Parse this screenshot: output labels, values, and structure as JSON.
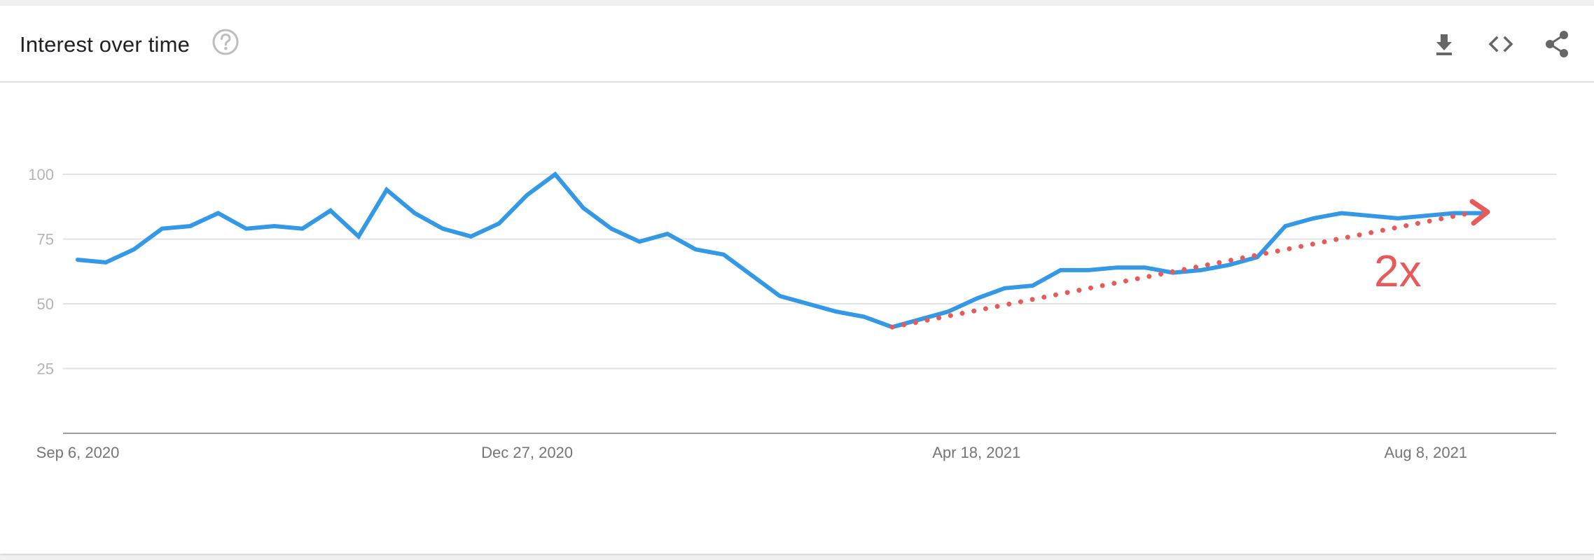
{
  "header": {
    "title": "Interest over time",
    "help_icon": "help-circle-icon",
    "actions": [
      {
        "name": "download",
        "icon": "download-icon"
      },
      {
        "name": "embed",
        "icon": "code-icon"
      },
      {
        "name": "share",
        "icon": "share-icon"
      }
    ]
  },
  "colors": {
    "series": "#3399e6",
    "annotation": "#e85a5a",
    "grid": "#e3e3e3",
    "axis": "#9e9e9e"
  },
  "chart_data": {
    "type": "line",
    "title": "",
    "xlabel": "",
    "ylabel": "",
    "ylim": [
      0,
      100
    ],
    "yticks": [
      "100",
      "75",
      "50",
      "25"
    ],
    "x_tick_labels": [
      "Sep 6, 2020",
      "Dec 27, 2020",
      "Apr 18, 2021",
      "Aug 8, 2021"
    ],
    "x_tick_dates": [
      "2020-09-06",
      "2020-12-27",
      "2021-04-18",
      "2021-08-08"
    ],
    "grid": true,
    "x_start": "2020-09-06",
    "series": [
      {
        "values": [
          67,
          66,
          71,
          79,
          80,
          85,
          79,
          80,
          79,
          86,
          76,
          94,
          85,
          79,
          76,
          81,
          92,
          100,
          87,
          79,
          74,
          77,
          71,
          69,
          61,
          53,
          50,
          47,
          45,
          41,
          44,
          47,
          52,
          56,
          57,
          63,
          63,
          64,
          64,
          62,
          63,
          65,
          68,
          80,
          83,
          85,
          84,
          83,
          84,
          85,
          85
        ]
      }
    ],
    "annotation": {
      "type": "dotted-trend-arrow",
      "label": "2x",
      "from": {
        "index": 29,
        "value": 41
      },
      "to": {
        "index": 50,
        "value": 86
      }
    }
  }
}
